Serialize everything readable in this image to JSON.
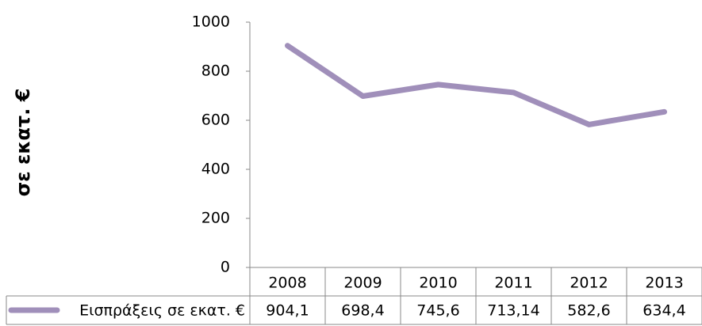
{
  "chart_data": {
    "type": "line",
    "y_label": "σε εκατ. €",
    "categories": [
      "2008",
      "2009",
      "2010",
      "2011",
      "2012",
      "2013"
    ],
    "series": [
      {
        "name": "Εισπράξεις σε εκατ. €",
        "color": "#a08fba",
        "values": [
          904.1,
          698.4,
          745.6,
          713.14,
          582.6,
          634.4
        ],
        "value_labels": [
          "904,1",
          "698,4",
          "745,6",
          "713,14",
          "582,6",
          "634,4"
        ]
      }
    ],
    "ylim": [
      0,
      1000
    ],
    "yticks": [
      0,
      200,
      400,
      600,
      800,
      1000
    ],
    "grid": false,
    "data_table": true
  }
}
